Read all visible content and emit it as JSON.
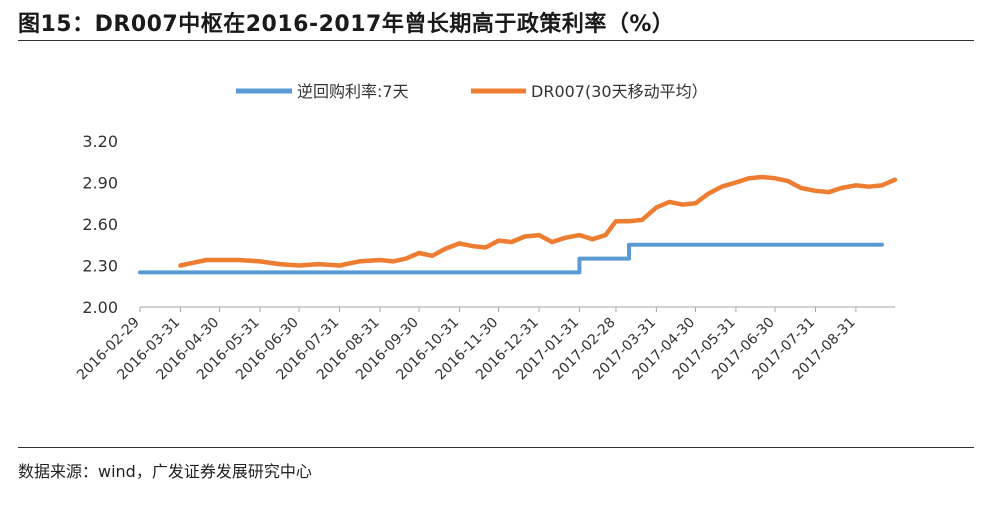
{
  "title": "图15：DR007中枢在2016-2017年曾长期高于政策利率（%）",
  "source": "数据来源：wind，广发证券发展研究中心",
  "chart_data": {
    "type": "line",
    "title": "DR007中枢在2016-2017年曾长期高于政策利率（%）",
    "xlabel": "",
    "ylabel": "",
    "ylim": [
      2.0,
      3.2
    ],
    "yticks": [
      "2.00",
      "2.30",
      "2.60",
      "2.90",
      "3.20"
    ],
    "x_ticks": [
      "2016-02-29",
      "2016-03-31",
      "2016-04-30",
      "2016-05-31",
      "2016-06-30",
      "2016-07-31",
      "2016-08-31",
      "2016-09-30",
      "2016-10-31",
      "2016-11-30",
      "2016-12-31",
      "2017-01-31",
      "2017-02-28",
      "2017-03-31",
      "2017-04-30",
      "2017-05-31",
      "2017-06-30",
      "2017-07-31",
      "2017-08-31"
    ],
    "xlim": [
      "2016-02-29",
      "2017-09-30"
    ],
    "grid": false,
    "legend_position": "top",
    "x": [
      "2016-02-29",
      "2016-03-15",
      "2016-03-31",
      "2016-04-10",
      "2016-04-20",
      "2016-04-30",
      "2016-05-15",
      "2016-05-31",
      "2016-06-15",
      "2016-06-30",
      "2016-07-15",
      "2016-07-31",
      "2016-08-15",
      "2016-08-31",
      "2016-09-10",
      "2016-09-20",
      "2016-09-30",
      "2016-10-10",
      "2016-10-20",
      "2016-10-31",
      "2016-11-10",
      "2016-11-20",
      "2016-11-30",
      "2016-12-10",
      "2016-12-20",
      "2016-12-31",
      "2017-01-10",
      "2017-01-20",
      "2017-01-31",
      "2017-02-10",
      "2017-02-20",
      "2017-02-28",
      "2017-03-10",
      "2017-03-20",
      "2017-03-31",
      "2017-04-10",
      "2017-04-20",
      "2017-04-30",
      "2017-05-10",
      "2017-05-20",
      "2017-05-31",
      "2017-06-10",
      "2017-06-20",
      "2017-06-30",
      "2017-07-10",
      "2017-07-20",
      "2017-07-31",
      "2017-08-10",
      "2017-08-20",
      "2017-08-31",
      "2017-09-10",
      "2017-09-20",
      "2017-09-30"
    ],
    "series": [
      {
        "name": "逆回购利率:7天",
        "color": "#5b9bd5",
        "values": [
          2.25,
          2.25,
          2.25,
          2.25,
          2.25,
          2.25,
          2.25,
          2.25,
          2.25,
          2.25,
          2.25,
          2.25,
          2.25,
          2.25,
          2.25,
          2.25,
          2.25,
          2.25,
          2.25,
          2.25,
          2.25,
          2.25,
          2.25,
          2.25,
          2.25,
          2.25,
          2.25,
          2.25,
          2.35,
          2.35,
          2.35,
          2.35,
          2.45,
          2.45,
          2.45,
          2.45,
          2.45,
          2.45,
          2.45,
          2.45,
          2.45,
          2.45,
          2.45,
          2.45,
          2.45,
          2.45,
          2.45,
          2.45,
          2.45,
          2.45,
          2.45,
          2.45,
          null
        ]
      },
      {
        "name": "DR007(30天移动平均）",
        "color": "#ed7d31",
        "values": [
          null,
          null,
          2.3,
          2.32,
          2.34,
          2.34,
          2.34,
          2.33,
          2.31,
          2.3,
          2.31,
          2.3,
          2.33,
          2.34,
          2.33,
          2.35,
          2.39,
          2.37,
          2.42,
          2.46,
          2.44,
          2.43,
          2.48,
          2.47,
          2.51,
          2.52,
          2.47,
          2.5,
          2.52,
          2.49,
          2.52,
          2.62,
          2.62,
          2.63,
          2.72,
          2.76,
          2.74,
          2.75,
          2.82,
          2.87,
          2.9,
          2.93,
          2.94,
          2.93,
          2.91,
          2.86,
          2.84,
          2.83,
          2.86,
          2.88,
          2.87,
          2.88,
          2.92
        ]
      }
    ]
  }
}
